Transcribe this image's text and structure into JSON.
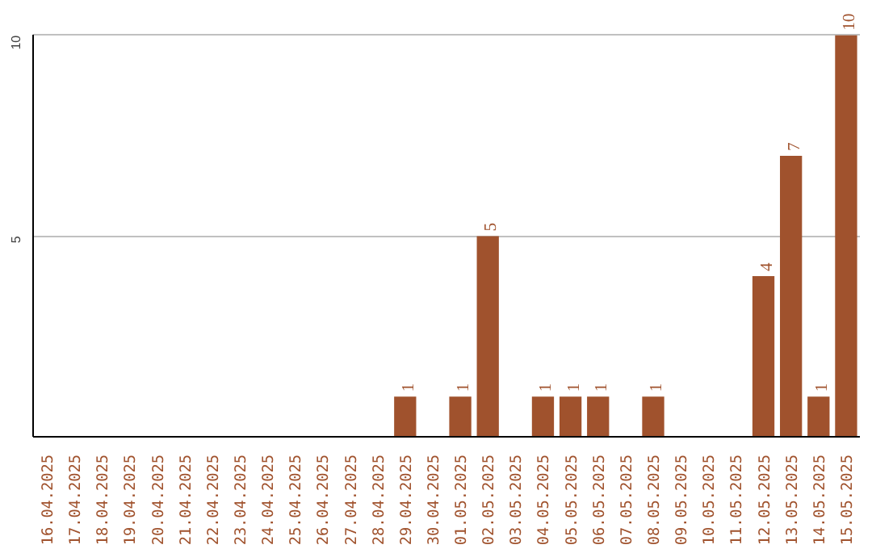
{
  "chart_data": {
    "type": "bar",
    "categories": [
      "16.04.2025",
      "17.04.2025",
      "18.04.2025",
      "19.04.2025",
      "20.04.2025",
      "21.04.2025",
      "22.04.2025",
      "23.04.2025",
      "24.04.2025",
      "25.04.2025",
      "26.04.2025",
      "27.04.2025",
      "28.04.2025",
      "29.04.2025",
      "30.04.2025",
      "01.05.2025",
      "02.05.2025",
      "03.05.2025",
      "04.05.2025",
      "05.05.2025",
      "06.05.2025",
      "07.05.2025",
      "08.05.2025",
      "09.05.2025",
      "10.05.2025",
      "11.05.2025",
      "12.05.2025",
      "13.05.2025",
      "14.05.2025",
      "15.05.2025"
    ],
    "values": [
      0,
      0,
      0,
      0,
      0,
      0,
      0,
      0,
      0,
      0,
      0,
      0,
      0,
      1,
      0,
      1,
      5,
      0,
      1,
      1,
      1,
      0,
      1,
      0,
      0,
      0,
      4,
      7,
      1,
      10
    ],
    "value_labels": [
      null,
      null,
      null,
      null,
      null,
      null,
      null,
      null,
      null,
      null,
      null,
      null,
      null,
      "1",
      null,
      "1",
      "5",
      null,
      "1",
      "1",
      "1",
      null,
      "1",
      null,
      null,
      null,
      "4",
      "7",
      "1",
      "10"
    ],
    "color": "#a0522d",
    "ylim": [
      0,
      10
    ],
    "yticks": [
      5,
      10
    ],
    "grid": "y"
  }
}
